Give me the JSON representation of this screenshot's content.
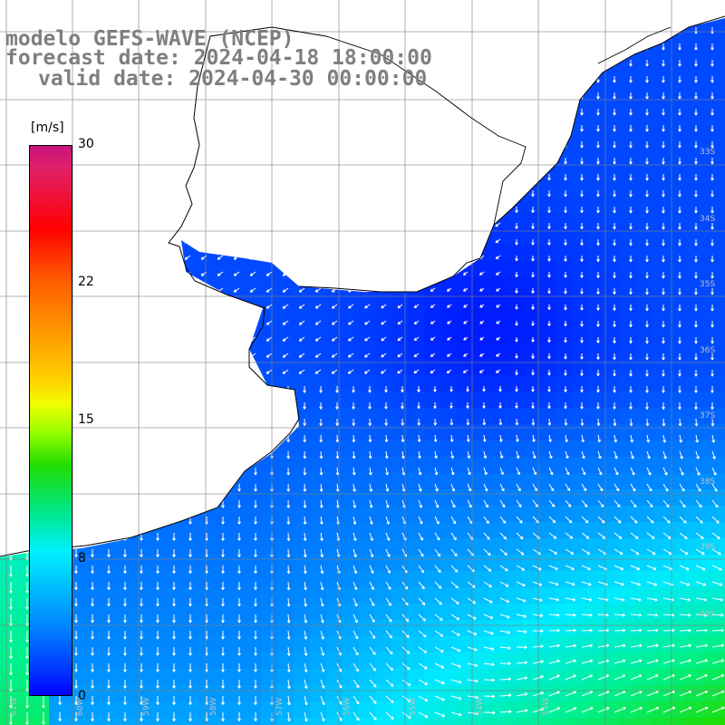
{
  "title": {
    "line1": "modelo GEFS-WAVE (NCEP)",
    "line2": "forecast date: 2024-04-18 18:00:00",
    "line3": "valid date: 2024-04-30 00:00:00"
  },
  "colorbar": {
    "unit": "[m/s]",
    "ticks": [
      "30",
      "22",
      "15",
      "8",
      "0"
    ],
    "tick_values": [
      30,
      22,
      15,
      8,
      0
    ],
    "colors": [
      "#0000ff",
      "#0080ff",
      "#00f0ff",
      "#00e680",
      "#22dd00",
      "#f0ff00",
      "#ffa500",
      "#ff0000",
      "#c8147f"
    ]
  },
  "grid": {
    "lat_labels": [
      "33S",
      "34S",
      "35S",
      "36S",
      "37S",
      "38S",
      "39S",
      "40S"
    ],
    "lon_labels": [
      "61W",
      "60W",
      "59W",
      "58W",
      "57W",
      "56W",
      "55W",
      "54W",
      "53W"
    ]
  },
  "colors": {
    "land": "#ffffff",
    "coast": "#000000",
    "grid": "#808080",
    "arrows": "#ffffff",
    "title": "#7f7f7f"
  },
  "map_field": {
    "variable": "wind speed",
    "unit": "m/s",
    "range": [
      0,
      30
    ]
  }
}
